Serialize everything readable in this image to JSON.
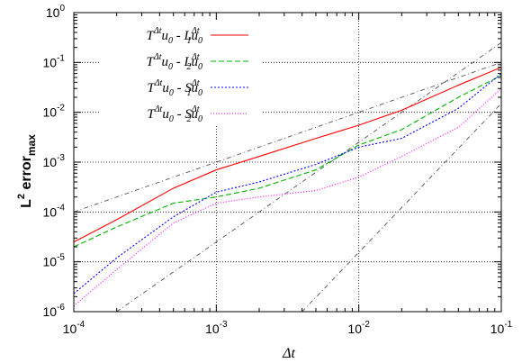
{
  "chart_data": {
    "type": "line",
    "xscale": "log",
    "yscale": "log",
    "xlim": [
      0.0001,
      0.1
    ],
    "ylim": [
      1e-06,
      1
    ],
    "xlabel": "Δt",
    "ylabel": "L² error_max",
    "ylabel_parts": {
      "main": "L",
      "sup": "2",
      "mid": " error",
      "sub": "max"
    },
    "x_ticks": [
      {
        "value": 0.0001,
        "base": "10",
        "exp": "-4"
      },
      {
        "value": 0.001,
        "base": "10",
        "exp": "-3"
      },
      {
        "value": 0.01,
        "base": "10",
        "exp": "-2"
      },
      {
        "value": 0.1,
        "base": "10",
        "exp": "-1"
      }
    ],
    "y_ticks": [
      {
        "value": 1e-06,
        "base": "10",
        "exp": "-6"
      },
      {
        "value": 1e-05,
        "base": "10",
        "exp": "-5"
      },
      {
        "value": 0.0001,
        "base": "10",
        "exp": "-4"
      },
      {
        "value": 0.001,
        "base": "10",
        "exp": "-3"
      },
      {
        "value": 0.01,
        "base": "10",
        "exp": "-2"
      },
      {
        "value": 0.1,
        "base": "10",
        "exp": "-1"
      },
      {
        "value": 1,
        "base": "10",
        "exp": "0"
      }
    ],
    "grid": "dotted",
    "legend_position": "top-left",
    "series": [
      {
        "name": "T^{Δt}u_0 - L_1^{Δt}u_0",
        "legend": {
          "a": "T",
          "sup1": "Δt",
          "b": "u",
          "sub1": "0",
          "c": " - L",
          "sup2": "Δt",
          "sub2": "1",
          "d": "u",
          "sub3": "0"
        },
        "color": "#ff0000",
        "dash": "",
        "x": [
          0.0001,
          0.0002,
          0.0005,
          0.001,
          0.002,
          0.005,
          0.01,
          0.02,
          0.05,
          0.1
        ],
        "y": [
          2.5e-05,
          7e-05,
          0.0003,
          0.0007,
          0.0013,
          0.003,
          0.0055,
          0.011,
          0.035,
          0.08
        ]
      },
      {
        "name": "T^{Δt}u_0 - L_2^{Δt}u_0",
        "legend": {
          "a": "T",
          "sup1": "Δt",
          "b": "u",
          "sub1": "0",
          "c": " - L",
          "sup2": "Δt",
          "sub2": "2",
          "d": "u",
          "sub3": "0"
        },
        "color": "#00b400",
        "dash": "6,3",
        "x": [
          0.0001,
          0.0002,
          0.0005,
          0.001,
          0.002,
          0.005,
          0.01,
          0.02,
          0.05,
          0.1
        ],
        "y": [
          2e-05,
          5e-05,
          0.00015,
          0.0002,
          0.0003,
          0.0007,
          0.0022,
          0.0045,
          0.02,
          0.055
        ]
      },
      {
        "name": "T^{Δt}u_0 - S_1^{Δt}u_0",
        "legend": {
          "a": "T",
          "sup1": "Δt",
          "b": "u",
          "sub1": "0",
          "c": " - S",
          "sup2": "Δt",
          "sub2": "1",
          "d": "u",
          "sub3": "0"
        },
        "color": "#0000ff",
        "dash": "2,2",
        "x": [
          0.0001,
          0.0002,
          0.0005,
          0.001,
          0.002,
          0.005,
          0.01,
          0.02,
          0.05,
          0.1
        ],
        "y": [
          2.3e-06,
          1.2e-05,
          8e-05,
          0.00025,
          0.0004,
          0.0009,
          0.002,
          0.003,
          0.012,
          0.06
        ]
      },
      {
        "name": "T^{Δt}u_0 - S_2^{Δt}u_0",
        "legend": {
          "a": "T",
          "sup1": "Δt",
          "b": "u",
          "sub1": "0",
          "c": " - S",
          "sup2": "Δt",
          "sub2": "2",
          "d": "u",
          "sub3": "0"
        },
        "color": "#ff00ff",
        "dash": "1,2",
        "x": [
          0.0001,
          0.0002,
          0.0005,
          0.001,
          0.002,
          0.005,
          0.01,
          0.02,
          0.05,
          0.1
        ],
        "y": [
          1.3e-06,
          7e-06,
          6e-05,
          0.00015,
          0.0002,
          0.00027,
          0.0005,
          0.0013,
          0.005,
          0.03
        ]
      }
    ],
    "reference_lines": [
      {
        "color": "#555555",
        "dash": "5,3,1,3",
        "x": [
          0.0001,
          0.1
        ],
        "y": [
          0.0001,
          0.1
        ]
      },
      {
        "color": "#555555",
        "dash": "5,3,1,3",
        "x": [
          0.0002,
          0.1
        ],
        "y": [
          1e-06,
          0.25
        ]
      },
      {
        "color": "#555555",
        "dash": "5,3,1,3",
        "x": [
          0.004,
          0.1
        ],
        "y": [
          1e-06,
          0.015
        ]
      }
    ]
  }
}
